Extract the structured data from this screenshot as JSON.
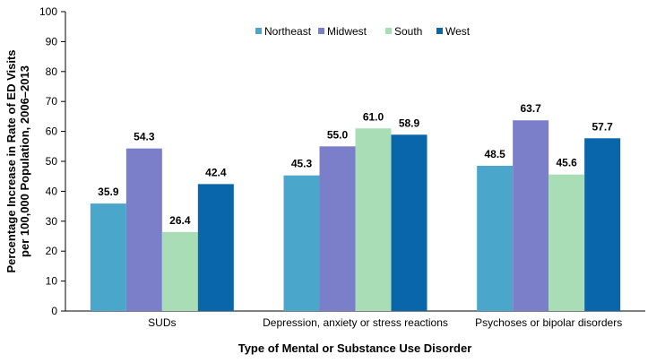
{
  "chart_data": {
    "type": "bar",
    "title": "",
    "xlabel": "Type of Mental or Substance Use Disorder",
    "ylabel_lines": [
      "Percentage Increase in Rate of ED Visits",
      "per 100,000  Population, 2006–2013"
    ],
    "ylim": [
      0,
      100
    ],
    "yticks": [
      0,
      10,
      20,
      30,
      40,
      50,
      60,
      70,
      80,
      90,
      100
    ],
    "grid": false,
    "legend": "top-center",
    "categories": [
      "SUDs",
      "Depression, anxiety or stress reactions",
      "Psychoses or bipolar disorders"
    ],
    "series": [
      {
        "name": "Northeast",
        "color": "#4BA6CC",
        "values": [
          35.9,
          45.3,
          48.5
        ]
      },
      {
        "name": "Midwest",
        "color": "#7B7FC9",
        "values": [
          54.3,
          55.0,
          63.7
        ]
      },
      {
        "name": "South",
        "color": "#A8DDB5",
        "values": [
          26.4,
          61.0,
          45.6
        ]
      },
      {
        "name": "West",
        "color": "#0A66AA",
        "values": [
          42.4,
          58.9,
          57.7
        ]
      }
    ]
  }
}
